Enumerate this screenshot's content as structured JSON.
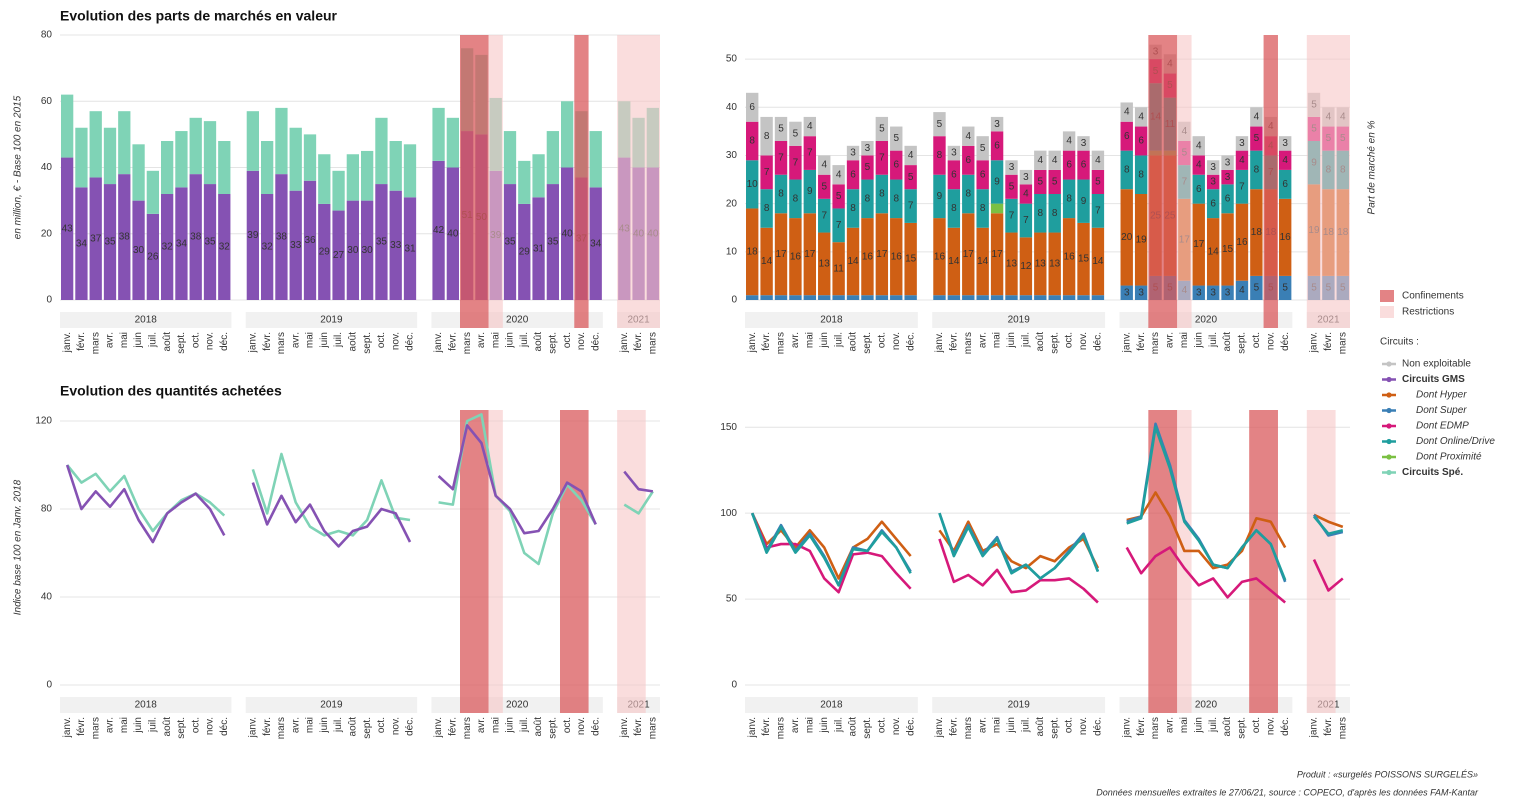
{
  "chart_data": [
    {
      "type": "bar",
      "title": "Evolution des parts de marchés en valeur",
      "ylabel": "en million, € - Base 100 en 2015",
      "ylim": [
        0,
        80
      ],
      "yticks": [
        0,
        20,
        40,
        60,
        80
      ],
      "grid": true,
      "groups": [
        {
          "label": "2018",
          "categories": [
            "janv.",
            "févr.",
            "mars",
            "avr.",
            "mai",
            "juin",
            "juil.",
            "août",
            "sept.",
            "oct.",
            "nov.",
            "déc."
          ]
        },
        {
          "label": "2019",
          "categories": [
            "janv.",
            "févr.",
            "mars",
            "avr.",
            "mai",
            "juin",
            "juil.",
            "août",
            "sept.",
            "oct.",
            "nov.",
            "déc."
          ]
        },
        {
          "label": "2020",
          "categories": [
            "janv.",
            "févr.",
            "mars",
            "avr.",
            "mai",
            "juin",
            "juil.",
            "août",
            "sept.",
            "oct.",
            "nov.",
            "déc."
          ]
        },
        {
          "label": "2021",
          "categories": [
            "janv.",
            "févr.",
            "mars"
          ]
        }
      ],
      "series": [
        {
          "name": "Circuits GMS",
          "color": "#8552b3",
          "labels": true,
          "values": [
            43,
            34,
            37,
            35,
            38,
            30,
            26,
            32,
            34,
            38,
            35,
            32,
            39,
            32,
            38,
            33,
            36,
            29,
            27,
            30,
            30,
            35,
            33,
            31,
            42,
            40,
            51,
            50,
            39,
            35,
            29,
            31,
            35,
            40,
            37,
            34,
            43,
            40,
            40
          ]
        },
        {
          "name": "Circuits Spé.",
          "color": "#7fd3b6",
          "labels": false,
          "values": [
            19,
            18,
            20,
            17,
            19,
            17,
            13,
            16,
            17,
            17,
            19,
            16,
            18,
            16,
            20,
            19,
            14,
            15,
            12,
            14,
            15,
            20,
            15,
            16,
            16,
            15,
            25,
            24,
            22,
            16,
            13,
            13,
            16,
            20,
            20,
            17,
            17,
            15,
            18
          ]
        }
      ],
      "shading": [
        {
          "type": "Confinements",
          "group": "2020",
          "from": "mars",
          "to": "avr."
        },
        {
          "type": "Confinements",
          "group": "2020",
          "from": "nov.",
          "to": "nov."
        },
        {
          "type": "Restrictions",
          "group": "2020",
          "from": "mai",
          "to": "mai"
        },
        {
          "type": "Restrictions",
          "group": "2021",
          "from": "janv.",
          "to": "mars"
        }
      ]
    },
    {
      "type": "bar",
      "ylabel": "Part de marché en %",
      "ylim": [
        0,
        55
      ],
      "yticks": [
        0,
        10,
        20,
        30,
        40,
        50
      ],
      "grid": true,
      "groups": [
        {
          "label": "2018",
          "categories": [
            "janv.",
            "févr.",
            "mars",
            "avr.",
            "mai",
            "juin",
            "juil.",
            "août",
            "sept.",
            "oct.",
            "nov.",
            "déc."
          ]
        },
        {
          "label": "2019",
          "categories": [
            "janv.",
            "févr.",
            "mars",
            "avr.",
            "mai",
            "juin",
            "juil.",
            "août",
            "sept.",
            "oct.",
            "nov.",
            "déc."
          ]
        },
        {
          "label": "2020",
          "categories": [
            "janv.",
            "févr.",
            "mars",
            "avr.",
            "mai",
            "juin",
            "juil.",
            "août",
            "sept.",
            "oct.",
            "nov.",
            "déc."
          ]
        },
        {
          "label": "2021",
          "categories": [
            "janv.",
            "févr.",
            "mars"
          ]
        }
      ],
      "series": [
        {
          "name": "Dont Super",
          "color": "#3a7fb5",
          "labels": true,
          "values": [
            1,
            1,
            1,
            1,
            1,
            1,
            1,
            1,
            1,
            1,
            1,
            1,
            1,
            1,
            1,
            1,
            1,
            1,
            1,
            1,
            1,
            1,
            1,
            1,
            3,
            3,
            5,
            5,
            4,
            3,
            3,
            3,
            4,
            5,
            5,
            5,
            5,
            5,
            5
          ]
        },
        {
          "name": "Dont Hyper",
          "color": "#cf5f14",
          "labels": true,
          "values": [
            18,
            14,
            17,
            16,
            17,
            13,
            11,
            14,
            16,
            17,
            16,
            15,
            16,
            14,
            17,
            14,
            17,
            13,
            12,
            13,
            13,
            16,
            15,
            14,
            20,
            19,
            25,
            25,
            17,
            17,
            14,
            15,
            16,
            18,
            18,
            16,
            19,
            18,
            18
          ]
        },
        {
          "name": "Dont Proximité",
          "color": "#7bc043",
          "labels": true,
          "values": [
            0,
            0,
            0,
            0,
            0,
            0,
            0,
            0,
            0,
            0,
            0,
            0,
            0,
            0,
            0,
            0,
            2,
            0,
            0,
            0,
            0,
            0,
            0,
            0,
            0,
            0,
            1,
            1,
            0,
            0,
            0,
            0,
            0,
            0,
            0,
            0,
            0,
            0,
            0
          ]
        },
        {
          "name": "Dont Online/Drive",
          "color": "#1f9e9e",
          "labels": true,
          "values": [
            10,
            8,
            8,
            8,
            9,
            7,
            7,
            8,
            8,
            8,
            8,
            7,
            9,
            8,
            8,
            8,
            9,
            7,
            7,
            8,
            8,
            8,
            9,
            7,
            8,
            8,
            14,
            11,
            7,
            6,
            6,
            6,
            7,
            8,
            7,
            6,
            9,
            8,
            8
          ]
        },
        {
          "name": "Dont EDMP",
          "color": "#d6197a",
          "labels": true,
          "values": [
            8,
            7,
            7,
            7,
            7,
            5,
            5,
            6,
            5,
            7,
            6,
            5,
            8,
            6,
            6,
            6,
            6,
            5,
            4,
            5,
            5,
            6,
            6,
            5,
            6,
            6,
            5,
            5,
            5,
            4,
            3,
            3,
            4,
            5,
            4,
            4,
            5,
            5,
            5
          ]
        },
        {
          "name": "Non exploitable",
          "color": "#c4c4c4",
          "labels": true,
          "values": [
            6,
            8,
            5,
            5,
            4,
            4,
            4,
            3,
            3,
            5,
            5,
            4,
            5,
            3,
            4,
            5,
            3,
            3,
            3,
            4,
            4,
            4,
            3,
            4,
            4,
            4,
            3,
            4,
            4,
            4,
            3,
            3,
            3,
            4,
            4,
            3,
            5,
            4,
            4
          ]
        }
      ],
      "shading": [
        {
          "type": "Confinements",
          "group": "2020",
          "from": "mars",
          "to": "avr."
        },
        {
          "type": "Confinements",
          "group": "2020",
          "from": "nov.",
          "to": "nov."
        },
        {
          "type": "Restrictions",
          "group": "2020",
          "from": "mai",
          "to": "mai"
        },
        {
          "type": "Restrictions",
          "group": "2021",
          "from": "janv.",
          "to": "mars"
        }
      ]
    },
    {
      "type": "line",
      "title": "Evolution des quantités achetées",
      "ylabel": "Indice base 100 en Janv. 2018",
      "ylim": [
        0,
        125
      ],
      "yticks": [
        0,
        40,
        80,
        120
      ],
      "grid": true,
      "groups": [
        {
          "label": "2018",
          "categories": [
            "janv.",
            "févr.",
            "mars",
            "avr.",
            "mai",
            "juin",
            "juil.",
            "août",
            "sept.",
            "oct.",
            "nov.",
            "déc."
          ]
        },
        {
          "label": "2019",
          "categories": [
            "janv.",
            "févr.",
            "mars",
            "avr.",
            "mai",
            "juin",
            "juil.",
            "août",
            "sept.",
            "oct.",
            "nov.",
            "déc."
          ]
        },
        {
          "label": "2020",
          "categories": [
            "janv.",
            "févr.",
            "mars",
            "avr.",
            "mai",
            "juin",
            "juil.",
            "août",
            "sept.",
            "oct.",
            "nov.",
            "déc."
          ]
        },
        {
          "label": "2021",
          "categories": [
            "janv.",
            "févr.",
            "mars"
          ]
        }
      ],
      "series": [
        {
          "name": "Circuits Spé.",
          "color": "#7fd3b6",
          "values": [
            100,
            92,
            96,
            88,
            95,
            80,
            70,
            78,
            84,
            87,
            83,
            77,
            98,
            78,
            105,
            83,
            72,
            68,
            70,
            68,
            75,
            93,
            76,
            75,
            83,
            82,
            120,
            123,
            86,
            79,
            60,
            55,
            78,
            91,
            84,
            73,
            82,
            78,
            88
          ]
        },
        {
          "name": "Circuits GMS",
          "color": "#8552b3",
          "values": [
            100,
            80,
            88,
            81,
            89,
            75,
            65,
            78,
            83,
            87,
            80,
            68,
            92,
            73,
            86,
            74,
            82,
            70,
            63,
            70,
            72,
            80,
            78,
            65,
            95,
            89,
            118,
            110,
            86,
            80,
            69,
            70,
            80,
            92,
            88,
            73,
            97,
            89,
            88
          ]
        }
      ],
      "shading": [
        {
          "type": "Confinements",
          "group": "2020",
          "from": "mars",
          "to": "avr."
        },
        {
          "type": "Confinements",
          "group": "2020",
          "from": "oct.",
          "to": "nov."
        },
        {
          "type": "Restrictions",
          "group": "2020",
          "from": "mai",
          "to": "mai"
        },
        {
          "type": "Restrictions",
          "group": "2021",
          "from": "janv.",
          "to": "févr."
        }
      ]
    },
    {
      "type": "line",
      "ylim": [
        0,
        160
      ],
      "yticks": [
        0,
        50,
        100,
        150
      ],
      "grid": true,
      "groups": [
        {
          "label": "2018",
          "categories": [
            "janv.",
            "févr.",
            "mars",
            "avr.",
            "mai",
            "juin",
            "juil.",
            "août",
            "sept.",
            "oct.",
            "nov.",
            "déc."
          ]
        },
        {
          "label": "2019",
          "categories": [
            "janv.",
            "févr.",
            "mars",
            "avr.",
            "mai",
            "juin",
            "juil.",
            "août",
            "sept.",
            "oct.",
            "nov.",
            "déc."
          ]
        },
        {
          "label": "2020",
          "categories": [
            "janv.",
            "févr.",
            "mars",
            "avr.",
            "mai",
            "juin",
            "juil.",
            "août",
            "sept.",
            "oct.",
            "nov.",
            "déc."
          ]
        },
        {
          "label": "2021",
          "categories": [
            "janv.",
            "févr.",
            "mars"
          ]
        }
      ],
      "series": [
        {
          "name": "Dont Hyper",
          "color": "#cf5f14",
          "values": [
            100,
            82,
            90,
            80,
            90,
            80,
            62,
            80,
            85,
            95,
            85,
            75,
            90,
            78,
            95,
            78,
            82,
            72,
            68,
            75,
            72,
            80,
            85,
            68,
            96,
            98,
            112,
            98,
            78,
            78,
            68,
            70,
            78,
            97,
            95,
            80,
            99,
            95,
            92
          ]
        },
        {
          "name": "Dont EDMP",
          "color": "#d6197a",
          "values": [
            100,
            80,
            82,
            82,
            78,
            62,
            54,
            76,
            77,
            75,
            65,
            56,
            85,
            60,
            64,
            58,
            67,
            54,
            55,
            61,
            61,
            62,
            56,
            48,
            80,
            65,
            75,
            80,
            68,
            58,
            62,
            51,
            60,
            62,
            55,
            48,
            73,
            55,
            62
          ]
        },
        {
          "name": "Dont Super",
          "color": "#3a7fb5",
          "values": [
            100,
            78,
            93,
            78,
            88,
            75,
            58,
            80,
            78,
            90,
            80,
            66,
            100,
            76,
            93,
            76,
            86,
            66,
            70,
            62,
            68,
            78,
            88,
            66,
            95,
            98,
            152,
            128,
            96,
            85,
            70,
            68,
            80,
            90,
            82,
            60,
            99,
            87,
            89
          ]
        },
        {
          "name": "Dont Online/Drive",
          "color": "#1f9e9e",
          "values": [
            100,
            77,
            92,
            77,
            87,
            74,
            58,
            79,
            78,
            89,
            80,
            65,
            100,
            75,
            92,
            75,
            85,
            65,
            70,
            62,
            68,
            77,
            87,
            66,
            94,
            97,
            150,
            126,
            95,
            84,
            70,
            68,
            80,
            90,
            82,
            61,
            98,
            88,
            90
          ]
        }
      ],
      "shading": [
        {
          "type": "Confinements",
          "group": "2020",
          "from": "mars",
          "to": "avr."
        },
        {
          "type": "Confinements",
          "group": "2020",
          "from": "oct.",
          "to": "nov."
        },
        {
          "type": "Restrictions",
          "group": "2020",
          "from": "mai",
          "to": "mai"
        },
        {
          "type": "Restrictions",
          "group": "2021",
          "from": "janv.",
          "to": "févr."
        }
      ]
    }
  ],
  "legend": {
    "shading": [
      {
        "name": "Confinements",
        "color": "#d9595c",
        "opacity": 0.75
      },
      {
        "name": "Restrictions",
        "color": "#f6c6c6",
        "opacity": 0.6
      }
    ],
    "title": "Circuits :",
    "items": [
      {
        "name": "Non exploitable",
        "color": "#c4c4c4",
        "style": "normal"
      },
      {
        "name": "Circuits GMS",
        "color": "#8552b3",
        "style": "bold"
      },
      {
        "name": "Dont Hyper",
        "color": "#cf5f14",
        "style": "italic"
      },
      {
        "name": "Dont Super",
        "color": "#3a7fb5",
        "style": "italic"
      },
      {
        "name": "Dont EDMP",
        "color": "#d6197a",
        "style": "italic"
      },
      {
        "name": "Dont Online/Drive",
        "color": "#1f9e9e",
        "style": "italic"
      },
      {
        "name": "Dont Proximité",
        "color": "#7bc043",
        "style": "italic"
      },
      {
        "name": "Circuits Spé.",
        "color": "#7fd3b6",
        "style": "bold"
      }
    ]
  },
  "footer": [
    "Produit : «surgelés POISSONS SURGELÉS»",
    "Données mensuelles extraites le 27/06/21, source : COPECO, d'après les données FAM-Kantar"
  ]
}
